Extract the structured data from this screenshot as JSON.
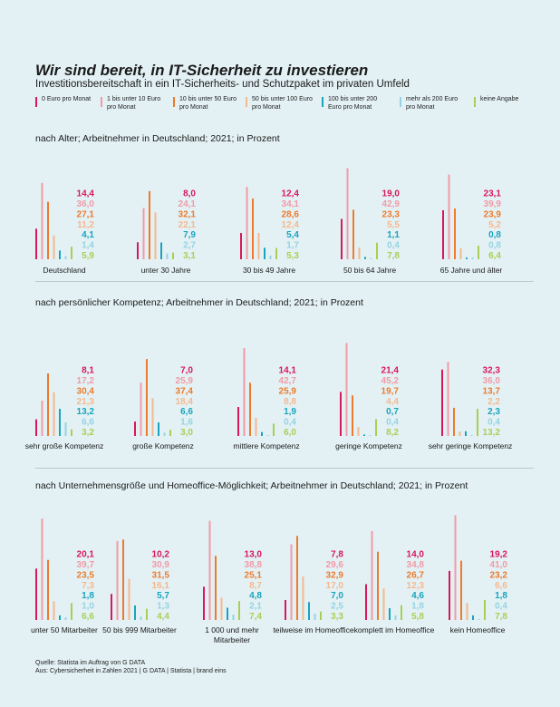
{
  "title": "Wir sind bereit, in IT-Sicherheit zu investieren",
  "subtitle": "Investitionsbereitschaft in ein IT-Sicherheits- und Schutzpaket im privaten Umfeld",
  "legend": [
    {
      "label": "0 Euro pro Monat",
      "color": "#d8185a"
    },
    {
      "label": "1 bis unter 10 Euro pro Monat",
      "color": "#f29aa6"
    },
    {
      "label": "10 bis unter 50 Euro pro Monat",
      "color": "#ee7a2c"
    },
    {
      "label": "50 bis unter 100 Euro pro Monat",
      "color": "#f6b88e"
    },
    {
      "label": "100 bis unter 200 Euro pro Monat",
      "color": "#1aa3bd"
    },
    {
      "label": "mehr als 200 Euro pro Monat",
      "color": "#95d3e3"
    },
    {
      "label": "keine Angabe",
      "color": "#a8cf55"
    }
  ],
  "sections": [
    {
      "heading": "nach Alter; Arbeitnehmer in Deutschland; 2021; in Prozent"
    },
    {
      "heading": "nach persönlicher Kompetenz; Arbeitnehmer in Deutschland; 2021; in Prozent"
    },
    {
      "heading": "nach Unternehmensgröße und Homeoffice-Möglichkeit; Arbeitnehmer in Deutschland; 2021; in Prozent"
    }
  ],
  "source": {
    "line1": "Quelle: Statista im Auftrag von G DATA",
    "line2": "Aus: Cybersicherheit in Zahlen 2021 | G DATA | Statista | brand eins"
  },
  "chart_data": [
    {
      "type": "bar",
      "title": "nach Alter; Arbeitnehmer in Deutschland; 2021; in Prozent",
      "categories": [
        "Deutschland",
        "unter 30 Jahre",
        "30 bis 49 Jahre",
        "50 bis 64 Jahre",
        "65 Jahre und älter"
      ],
      "series_labels": [
        "0 Euro pro Monat",
        "1 bis unter 10 Euro pro Monat",
        "10 bis unter 50 Euro pro Monat",
        "50 bis unter 100 Euro pro Monat",
        "100 bis unter 200 Euro pro Monat",
        "mehr als 200 Euro pro Monat",
        "keine Angabe"
      ],
      "values": [
        [
          "14,4",
          "36,0",
          "27,1",
          "11,2",
          "4,1",
          "1,4",
          "5,9"
        ],
        [
          "8,0",
          "24,1",
          "32,1",
          "22,1",
          "7,9",
          "2,7",
          "3,1"
        ],
        [
          "12,4",
          "34,1",
          "28,6",
          "12,4",
          "5,4",
          "1,7",
          "5,3"
        ],
        [
          "19,0",
          "42,9",
          "23,3",
          "5,5",
          "1,1",
          "0,4",
          "7,8"
        ],
        [
          "23,1",
          "39,9",
          "23,9",
          "5,2",
          "0,8",
          "0,8",
          "6,4"
        ]
      ]
    },
    {
      "type": "bar",
      "title": "nach persönlicher Kompetenz; Arbeitnehmer in Deutschland; 2021; in Prozent",
      "categories": [
        "sehr große Kompetenz",
        "große Kompetenz",
        "mittlere Kompetenz",
        "geringe Kompetenz",
        "sehr geringe Kompetenz"
      ],
      "series_labels": [
        "0 Euro pro Monat",
        "1 bis unter 10 Euro pro Monat",
        "10 bis unter 50 Euro pro Monat",
        "50 bis unter 100 Euro pro Monat",
        "100 bis unter 200 Euro pro Monat",
        "mehr als 200 Euro pro Monat",
        "keine Angabe"
      ],
      "values": [
        [
          "8,1",
          "17,2",
          "30,4",
          "21,3",
          "13,2",
          "6,6",
          "3,2"
        ],
        [
          "7,0",
          "25,9",
          "37,4",
          "18,4",
          "6,6",
          "1,6",
          "3,0"
        ],
        [
          "14,1",
          "42,7",
          "25,9",
          "8,8",
          "1,9",
          "0,4",
          "6,0"
        ],
        [
          "21,4",
          "45,2",
          "19,7",
          "4,4",
          "0,7",
          "0,4",
          "8,2"
        ],
        [
          "32,3",
          "36,0",
          "13,7",
          "2,2",
          "2,3",
          "0,4",
          "13,2"
        ]
      ]
    },
    {
      "type": "bar",
      "title": "nach Unternehmensgröße und Homeoffice-Möglichkeit; Arbeitnehmer in Deutschland; 2021; in Prozent",
      "categories": [
        "unter 50 Mitarbeiter",
        "50 bis 999 Mitarbeiter",
        "1 000 und mehr Mitarbeiter",
        "teilweise im Homeoffice",
        "komplett im Homeoffice",
        "kein Homeoffice"
      ],
      "series_labels": [
        "0 Euro pro Monat",
        "1 bis unter 10 Euro pro Monat",
        "10 bis unter 50 Euro pro Monat",
        "50 bis unter 100 Euro pro Monat",
        "100 bis unter 200 Euro pro Monat",
        "mehr als 200 Euro pro Monat",
        "keine Angabe"
      ],
      "values": [
        [
          "20,1",
          "39,7",
          "23,5",
          "7,3",
          "1,8",
          "1,0",
          "6,6"
        ],
        [
          "10,2",
          "30,9",
          "31,5",
          "16,1",
          "5,7",
          "1,3",
          "4,4"
        ],
        [
          "13,0",
          "38,8",
          "25,1",
          "8,7",
          "4,8",
          "2,1",
          "7,4"
        ],
        [
          "7,8",
          "29,6",
          "32,9",
          "17,0",
          "7,0",
          "2,5",
          "3,3"
        ],
        [
          "14,0",
          "34,8",
          "26,7",
          "12,3",
          "4,6",
          "1,8",
          "5,8"
        ],
        [
          "19,2",
          "41,0",
          "23,2",
          "6,6",
          "1,8",
          "0,4",
          "7,8"
        ]
      ]
    }
  ]
}
